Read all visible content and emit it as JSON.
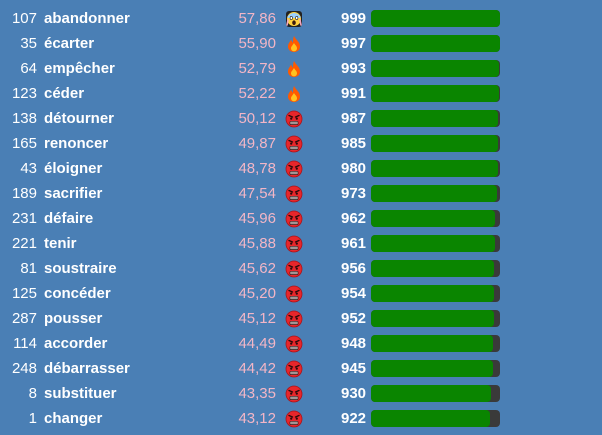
{
  "colors": {
    "background": "#4a7fb5",
    "score_text": "#f3b6c6",
    "bar_fill": "#0a8500",
    "bar_track": "#3a3a3a"
  },
  "rows": [
    {
      "rank": "107",
      "word": "abandonner",
      "score": "57,86",
      "icon": "scream-emoji-icon",
      "count": "999",
      "progress": 1.0
    },
    {
      "rank": "35",
      "word": "écarter",
      "score": "55,90",
      "icon": "fire-emoji-icon",
      "count": "997",
      "progress": 0.998
    },
    {
      "rank": "64",
      "word": "empêcher",
      "score": "52,79",
      "icon": "fire-emoji-icon",
      "count": "993",
      "progress": 0.994
    },
    {
      "rank": "123",
      "word": "céder",
      "score": "52,22",
      "icon": "fire-emoji-icon",
      "count": "991",
      "progress": 0.992
    },
    {
      "rank": "138",
      "word": "détourner",
      "score": "50,12",
      "icon": "angry-face-emoji-icon",
      "count": "987",
      "progress": 0.988
    },
    {
      "rank": "165",
      "word": "renoncer",
      "score": "49,87",
      "icon": "angry-face-emoji-icon",
      "count": "985",
      "progress": 0.986
    },
    {
      "rank": "43",
      "word": "éloigner",
      "score": "48,78",
      "icon": "angry-face-emoji-icon",
      "count": "980",
      "progress": 0.981
    },
    {
      "rank": "189",
      "word": "sacrifier",
      "score": "47,54",
      "icon": "angry-face-emoji-icon",
      "count": "973",
      "progress": 0.974
    },
    {
      "rank": "231",
      "word": "défaire",
      "score": "45,96",
      "icon": "angry-face-emoji-icon",
      "count": "962",
      "progress": 0.963
    },
    {
      "rank": "221",
      "word": "tenir",
      "score": "45,88",
      "icon": "angry-face-emoji-icon",
      "count": "961",
      "progress": 0.962
    },
    {
      "rank": "81",
      "word": "soustraire",
      "score": "45,62",
      "icon": "angry-face-emoji-icon",
      "count": "956",
      "progress": 0.957
    },
    {
      "rank": "125",
      "word": "concéder",
      "score": "45,20",
      "icon": "angry-face-emoji-icon",
      "count": "954",
      "progress": 0.955
    },
    {
      "rank": "287",
      "word": "pousser",
      "score": "45,12",
      "icon": "angry-face-emoji-icon",
      "count": "952",
      "progress": 0.953
    },
    {
      "rank": "114",
      "word": "accorder",
      "score": "44,49",
      "icon": "angry-face-emoji-icon",
      "count": "948",
      "progress": 0.949
    },
    {
      "rank": "248",
      "word": "débarrasser",
      "score": "44,42",
      "icon": "angry-face-emoji-icon",
      "count": "945",
      "progress": 0.946
    },
    {
      "rank": "8",
      "word": "substituer",
      "score": "43,35",
      "icon": "angry-face-emoji-icon",
      "count": "930",
      "progress": 0.931
    },
    {
      "rank": "1",
      "word": "changer",
      "score": "43,12",
      "icon": "angry-face-emoji-icon",
      "count": "922",
      "progress": 0.923
    }
  ]
}
